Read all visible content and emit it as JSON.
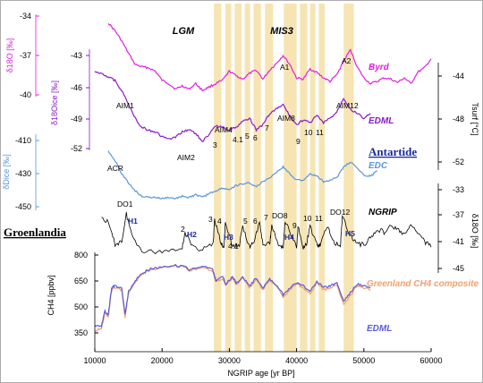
{
  "chart_data": {
    "type": "line",
    "xlabel": "NGRIP age  [yr BP]",
    "xlim": [
      10000,
      60000
    ],
    "x_ticks": [
      "10000",
      "20000",
      "30000",
      "40000",
      "50000",
      "60000"
    ],
    "period_labels": [
      "LGM",
      "MIS3"
    ],
    "region_labels": [
      "Antartide",
      "Groenlandia"
    ],
    "interstadial_bands_yr": [
      [
        27700,
        28800
      ],
      [
        29400,
        30300
      ],
      [
        30800,
        31800
      ],
      [
        32300,
        33100
      ],
      [
        33600,
        34700
      ],
      [
        35300,
        36500
      ],
      [
        38100,
        40000
      ],
      [
        40500,
        41600
      ],
      [
        42000,
        42800
      ],
      [
        43300,
        44200
      ],
      [
        47000,
        48500
      ]
    ],
    "series": [
      {
        "name": "Byrd",
        "color": "#e020e0",
        "axis_label": "δ18O [‰]",
        "ylim": [
          -34,
          -41
        ],
        "yticks": [
          "-34",
          "-37",
          "-40"
        ],
        "x": [
          12000,
          13000,
          14000,
          15000,
          16000,
          17000,
          18000,
          19000,
          20000,
          21000,
          22000,
          23000,
          24000,
          25000,
          26000,
          27000,
          28000,
          29000,
          30000,
          31000,
          32000,
          33000,
          34000,
          35000,
          36000,
          37000,
          38000,
          39000,
          40000,
          41000,
          42000,
          43000,
          44000,
          45000,
          46000,
          47000,
          48000,
          49000,
          50000,
          51000,
          52000,
          53000,
          54000,
          55000,
          56000,
          57000,
          58000,
          59000,
          60000
        ],
        "values": [
          -34.6,
          -35.3,
          -36.2,
          -37.3,
          -38.3,
          -38.5,
          -38.6,
          -38.9,
          -39.7,
          -40.0,
          -40.5,
          -40.2,
          -40.5,
          -40.0,
          -40.6,
          -40.3,
          -40.0,
          -39.7,
          -38.9,
          -39.3,
          -39.6,
          -39.1,
          -38.8,
          -39.6,
          -38.8,
          -38.2,
          -37.5,
          -38.3,
          -39.5,
          -39.6,
          -38.7,
          -39.0,
          -39.5,
          -39.8,
          -39.2,
          -38.0,
          -37.0,
          -38.5,
          -39.5,
          -40.0,
          -39.8,
          -39.5,
          -39.6,
          -39.9,
          -39.5,
          -40.0,
          -39.0,
          -38.6,
          -37.8
        ]
      },
      {
        "name": "EDML",
        "color": "#8a1ac8",
        "axis_label": "δ18Oice [‰]",
        "ylim": [
          -42,
          -53
        ],
        "yticks": [
          "-43",
          "-46",
          "-49",
          "-52"
        ],
        "x": [
          10000,
          11000,
          12000,
          13000,
          14000,
          15000,
          16000,
          17000,
          18000,
          19000,
          20000,
          21000,
          22000,
          23000,
          24000,
          25000,
          26000,
          27000,
          28000,
          29000,
          30000,
          31000,
          32000,
          33000,
          34000,
          35000,
          36000,
          37000,
          38000,
          39000,
          40000,
          41000,
          42000,
          43000,
          44000,
          45000,
          46000,
          47000,
          48000,
          49000,
          50000,
          51000
        ],
        "values": [
          -44.5,
          -44.6,
          -45.0,
          -45.4,
          -46.5,
          -48.0,
          -49.5,
          -50.5,
          -50.8,
          -51.0,
          -51.5,
          -51.8,
          -51.6,
          -51.0,
          -50.7,
          -51.2,
          -52.0,
          -51.3,
          -50.3,
          -50.5,
          -50.8,
          -50.5,
          -49.8,
          -49.5,
          -50.8,
          -50.2,
          -49.0,
          -48.5,
          -48.0,
          -49.3,
          -50.2,
          -49.7,
          -50.0,
          -49.2,
          -50.0,
          -49.5,
          -48.8,
          -47.3,
          -48.5,
          -49.0,
          -49.5,
          -49.0
        ]
      },
      {
        "name": "EDC",
        "color": "#5a96dc",
        "axis_label": "δDice [‰]",
        "ylim": [
          -400,
          -450
        ],
        "yticks": [
          "-410",
          "-430",
          "-450"
        ],
        "x": [
          12000,
          13000,
          14000,
          15000,
          16000,
          17000,
          18000,
          19000,
          20000,
          21000,
          22000,
          23000,
          24000,
          25000,
          26000,
          27000,
          28000,
          29000,
          30000,
          31000,
          32000,
          33000,
          34000,
          35000,
          36000,
          37000,
          38000,
          39000,
          40000,
          41000,
          42000,
          43000,
          44000,
          45000,
          46000,
          47000,
          48000,
          49000,
          50000,
          51000,
          52000
        ],
        "values": [
          -408,
          -415,
          -425,
          -432,
          -438,
          -442,
          -443,
          -443,
          -444,
          -443,
          -444,
          -442,
          -443,
          -441,
          -443,
          -440,
          -438,
          -436,
          -437,
          -434,
          -433,
          -432,
          -435,
          -431,
          -428,
          -424,
          -420,
          -425,
          -430,
          -430,
          -425,
          -427,
          -431,
          -430,
          -428,
          -420,
          -416,
          -421,
          -426,
          -427,
          -423
        ]
      },
      {
        "name": "NGRIP",
        "color": "#000000",
        "axis_label": "δ18O [‰]",
        "ylim": [
          -33,
          -46
        ],
        "yticks": [
          "-33",
          "-37",
          "-41",
          "-45"
        ],
        "x": [
          11000,
          12000,
          13000,
          14000,
          14700,
          15500,
          17000,
          19000,
          21000,
          23000,
          23400,
          24500,
          26000,
          27600,
          27800,
          28800,
          29200,
          29400,
          30500,
          31500,
          32000,
          33000,
          33500,
          34500,
          35000,
          36000,
          36300,
          37500,
          38000,
          38300,
          39000,
          40000,
          40200,
          41000,
          41500,
          42000,
          43000,
          43500,
          44500,
          45500,
          46500,
          46800,
          48000,
          49000,
          50000,
          51000,
          52000,
          53000,
          54000,
          55000,
          56000,
          57000,
          58000,
          59000,
          60000
        ],
        "values": [
          -37.5,
          -38.5,
          -42.0,
          -41.5,
          -37.0,
          -40.5,
          -43.0,
          -43.3,
          -43.0,
          -42.5,
          -40.0,
          -42.5,
          -42.8,
          -42.0,
          -38.0,
          -42.0,
          -42.5,
          -38.5,
          -42.5,
          -42.0,
          -39.0,
          -42.5,
          -42.0,
          -38.5,
          -42.0,
          -42.0,
          -39.0,
          -42.5,
          -42.5,
          -38.0,
          -40.0,
          -42.5,
          -39.0,
          -42.5,
          -42.0,
          -39.0,
          -42.0,
          -42.3,
          -39.0,
          -41.5,
          -42.5,
          -37.5,
          -40.5,
          -42.0,
          -42.0,
          -41.0,
          -39.5,
          -40.0,
          -39.0,
          -39.5,
          -40.5,
          -39.0,
          -40.0,
          -41.5,
          -42.5
        ]
      },
      {
        "name": "Greenland CH4 composite",
        "color": "#f0a070",
        "axis_label": "CH4 [ppbv]",
        "ylim": [
          300,
          800
        ],
        "yticks": [
          "350",
          "500",
          "650",
          "800"
        ],
        "x": [
          10000,
          11000,
          11500,
          12000,
          12500,
          13000,
          14000,
          14500,
          15000,
          16000,
          17000,
          18000,
          20000,
          22000,
          23500,
          24000,
          26000,
          27500,
          28000,
          29000,
          29500,
          30500,
          31000,
          32000,
          33000,
          34000,
          35000,
          36000,
          37000,
          38000,
          39000,
          40000,
          41000,
          42000,
          43000,
          44000,
          45000,
          46000,
          47000,
          48000,
          49000,
          50000,
          51000
        ],
        "values": [
          690,
          680,
          600,
          620,
          480,
          470,
          480,
          620,
          500,
          440,
          400,
          380,
          365,
          360,
          360,
          380,
          365,
          380,
          440,
          420,
          460,
          415,
          455,
          420,
          470,
          425,
          480,
          430,
          460,
          520,
          480,
          450,
          470,
          500,
          440,
          480,
          470,
          450,
          560,
          510,
          460,
          470,
          480
        ]
      },
      {
        "name": "EDML",
        "color": "#5a5adc",
        "axis_label": "CH4 [ppbv]",
        "ylim": [
          300,
          800
        ],
        "yticks": [
          "350",
          "500",
          "650",
          "800"
        ],
        "x": [
          10000,
          11000,
          11500,
          12000,
          12500,
          13000,
          14000,
          14500,
          15000,
          16000,
          17000,
          18000,
          20000,
          22000,
          23500,
          24000,
          26000,
          27500,
          28000,
          29000,
          29500,
          30500,
          31000,
          32000,
          33000,
          34000,
          35000,
          36000,
          37000,
          38000,
          39000,
          40000,
          41000,
          42000,
          43000,
          44000,
          45000,
          46000,
          47000,
          48000,
          49000,
          50000,
          51000
        ],
        "values": [
          670,
          665,
          590,
          610,
          470,
          460,
          470,
          610,
          490,
          430,
          395,
          375,
          360,
          355,
          360,
          375,
          360,
          375,
          430,
          410,
          450,
          410,
          445,
          415,
          460,
          420,
          470,
          425,
          455,
          505,
          470,
          445,
          460,
          490,
          435,
          470,
          460,
          445,
          540,
          495,
          450,
          460,
          470
        ]
      }
    ],
    "right_axes": [
      {
        "label": "Tsurf [°C]",
        "yticks": [
          "-44",
          "-48",
          "-52"
        ]
      },
      {
        "label": "δ18O [‰]",
        "yticks": [
          "-33",
          "-37",
          "-41",
          "-45"
        ]
      }
    ],
    "events_antarctica": [
      "A1",
      "A2",
      "AIM1",
      "AIM2",
      "AIM4",
      "AIM8",
      "AIM12",
      "ACR",
      "3",
      "4.1",
      "5",
      "6",
      "7",
      "9",
      "10",
      "11"
    ],
    "events_greenland": [
      "DO1",
      "DO8",
      "DO12",
      "2",
      "3",
      "4",
      "5",
      "6",
      "7",
      "4.1",
      "9",
      "10",
      "11"
    ],
    "heinrich": [
      "H1",
      "H2",
      "H3",
      "H4",
      "H5"
    ]
  }
}
